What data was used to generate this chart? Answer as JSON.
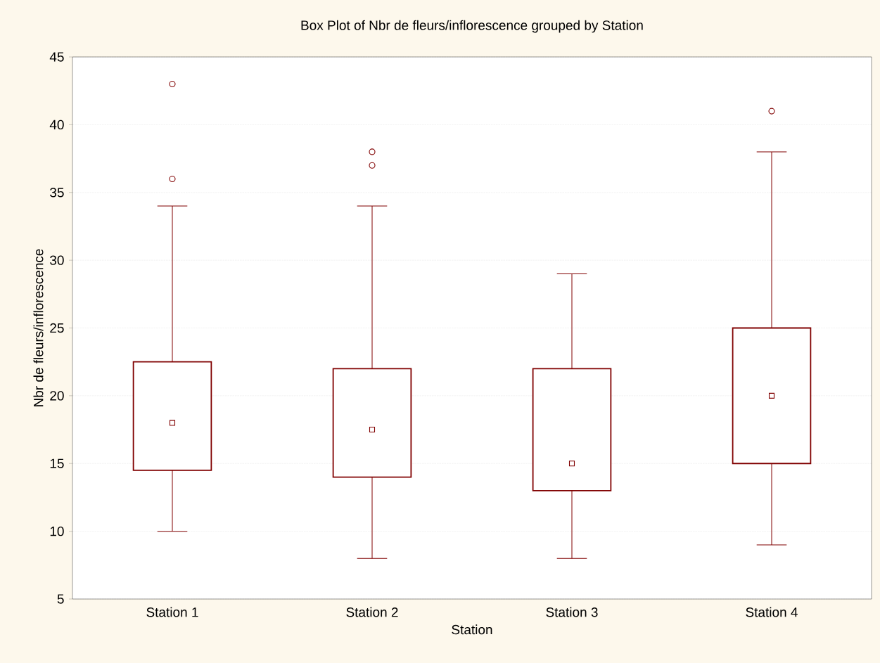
{
  "chart_data": {
    "type": "box",
    "title": "Box Plot of Nbr de fleurs/inflorescence grouped by Station",
    "xlabel": "Station",
    "ylabel": "Nbr de fleurs/inflorescence",
    "categories": [
      "Station 1",
      "Station 2",
      "Station 3",
      "Station 4"
    ],
    "color": "#800000",
    "boxes": [
      {
        "low": 10,
        "q1": 14.5,
        "median": 18,
        "q3": 22.5,
        "high": 34,
        "outliers": [
          36,
          43
        ]
      },
      {
        "low": 8,
        "q1": 14,
        "median": 17.5,
        "q3": 22,
        "high": 34,
        "outliers": [
          37,
          38
        ]
      },
      {
        "low": 8,
        "q1": 13,
        "median": 15,
        "q3": 22,
        "high": 29
      },
      {
        "low": 9,
        "q1": 15,
        "median": 20,
        "q3": 25,
        "high": 38,
        "outliers": [
          41
        ]
      }
    ],
    "ylim": [
      5,
      45
    ],
    "yticks": [
      5,
      10,
      15,
      20,
      25,
      30,
      35,
      40,
      45
    ],
    "grid": "y"
  }
}
